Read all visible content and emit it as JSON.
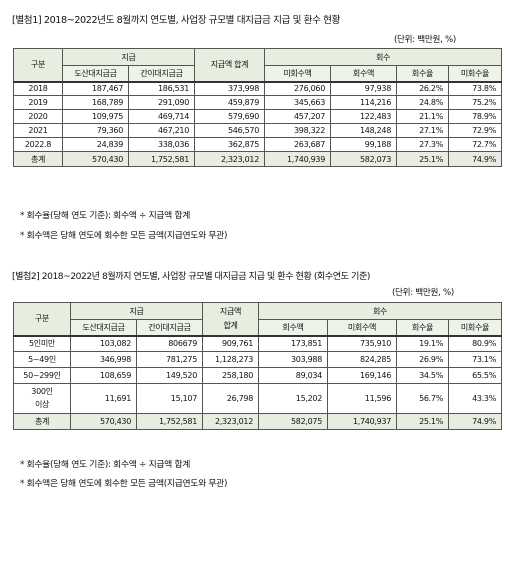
{
  "table1": {
    "title": "[별첨1] 2018~2022년도 8월까지 연도별, 사업장 규모별 대지급금 지급 및 환수 현황",
    "unit": "(단위: 백만원, %)",
    "headers": {
      "category": "구분",
      "payment": "지급",
      "payment_total": "지급액 합계",
      "recovery": "회수",
      "sub": [
        "도산대지급금",
        "간이대지급금",
        "미회수액",
        "회수액",
        "회수율",
        "미회수율"
      ]
    },
    "rows": [
      {
        "label": "2018",
        "cells": [
          "187,467",
          "186,531",
          "373,998",
          "276,060",
          "97,938",
          "26.2%",
          "73.8%"
        ]
      },
      {
        "label": "2019",
        "cells": [
          "168,789",
          "291,090",
          "459,879",
          "345,663",
          "114,216",
          "24.8%",
          "75.2%"
        ]
      },
      {
        "label": "2020",
        "cells": [
          "109,975",
          "469,714",
          "579,690",
          "457,207",
          "122,483",
          "21.1%",
          "78.9%"
        ]
      },
      {
        "label": "2021",
        "cells": [
          "79,360",
          "467,210",
          "546,570",
          "398,322",
          "148,248",
          "27.1%",
          "72.9%"
        ]
      },
      {
        "label": "2022.8",
        "cells": [
          "24,839",
          "338,036",
          "362,875",
          "263,687",
          "99,188",
          "27.3%",
          "72.7%"
        ]
      },
      {
        "label": "총계",
        "cells": [
          "570,430",
          "1,752,581",
          "2,323,012",
          "1,740,939",
          "582,073",
          "25.1%",
          "74.9%"
        ]
      }
    ],
    "notes": [
      "* 회수율(당해 연도 기준): 회수액 ÷ 지급액 합계",
      "* 회수액은 당해 연도에 회수한 모든 금액(지급연도와 무관)"
    ]
  },
  "table2": {
    "title": "[별첨2] 2018~2022년 8월까지 연도별, 사업장 규모별 대지급금 지급 및 환수 현황 (회수연도 기준)",
    "unit": "(단위: 백만원, %)",
    "headers": {
      "category": "구분",
      "payment": "지급",
      "payment_total_1": "지급액",
      "payment_total_2": "합계",
      "recovery": "회수",
      "sub": [
        "도산대지급금",
        "간이대지급금",
        "회수액",
        "미회수액",
        "회수율",
        "미회수율"
      ]
    },
    "rows": [
      {
        "label": "5인미만",
        "cells": [
          "103,082",
          "806679",
          "909,761",
          "173,851",
          "735,910",
          "19.1%",
          "80.9%"
        ]
      },
      {
        "label": "5~49인",
        "cells": [
          "346,998",
          "781,275",
          "1,128,273",
          "303,988",
          "824,285",
          "26.9%",
          "73.1%"
        ]
      },
      {
        "label": "50~299인",
        "cells": [
          "108,659",
          "149,520",
          "258,180",
          "89,034",
          "169,146",
          "34.5%",
          "65.5%"
        ]
      },
      {
        "label": "300인 이상",
        "label1": "300인",
        "label2": "이상",
        "cells": [
          "11,691",
          "15,107",
          "26,798",
          "15,202",
          "11,596",
          "56.7%",
          "43.3%"
        ]
      },
      {
        "label": "총계",
        "cells": [
          "570,430",
          "1,752,581",
          "2,323,012",
          "582,075",
          "1,740,937",
          "25.1%",
          "74.9%"
        ]
      }
    ],
    "notes": [
      "* 회수율(당해 연도 기준): 회수액 ÷ 지급액 합계",
      "* 회수액은 당해 연도에 회수한 모든 금액(지급연도와 무관)"
    ]
  }
}
